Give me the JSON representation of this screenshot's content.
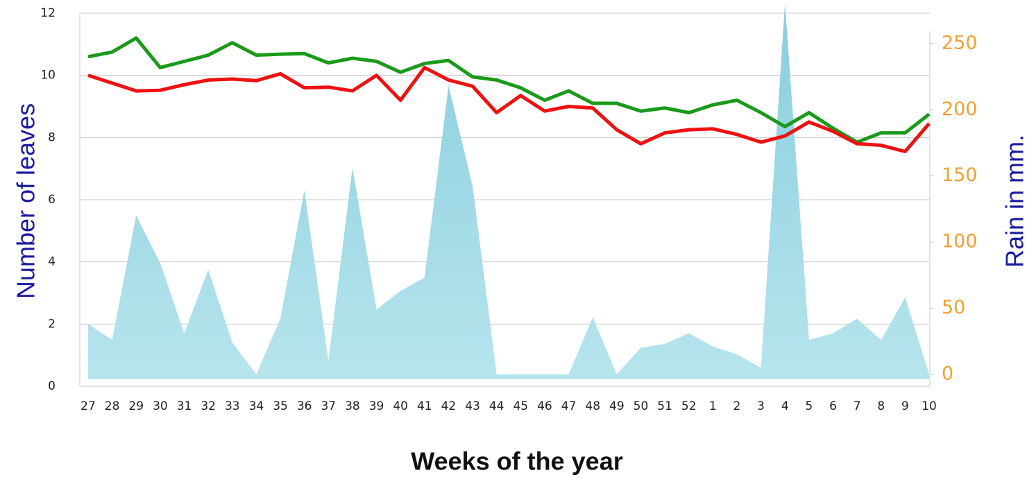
{
  "chart_data": {
    "type": "line",
    "x_label": "Weeks of the year",
    "y_label": "Number of leaves",
    "y2_label": "Rain in mm.",
    "categories": [
      "27",
      "28",
      "29",
      "30",
      "31",
      "32",
      "33",
      "34",
      "35",
      "36",
      "37",
      "38",
      "39",
      "40",
      "41",
      "42",
      "43",
      "44",
      "45",
      "46",
      "47",
      "48",
      "49",
      "50",
      "51",
      "52",
      "1",
      "2",
      "3",
      "4",
      "5",
      "6",
      "7",
      "8",
      "9",
      "10"
    ],
    "ylim": [
      0,
      12
    ],
    "yticks": [
      0,
      2,
      4,
      6,
      8,
      10,
      12
    ],
    "y2lim": [
      -9,
      273
    ],
    "y2ticks": [
      0,
      50,
      100,
      150,
      200,
      250
    ],
    "grid": true,
    "series": [
      {
        "type": "area",
        "axis": "y2",
        "color": "#a6dbe6",
        "values": [
          38,
          26,
          120,
          84,
          31,
          79,
          24,
          0,
          42,
          139,
          10,
          156,
          49,
          63,
          73,
          218,
          142,
          0,
          0,
          0,
          0,
          43,
          0,
          20,
          23,
          31,
          21,
          15,
          5,
          280,
          26,
          31,
          42,
          26,
          58,
          0
        ]
      },
      {
        "type": "line",
        "color": "#1a9a1a",
        "values": [
          10.6,
          10.75,
          11.2,
          10.25,
          10.45,
          10.65,
          11.05,
          10.65,
          10.68,
          10.7,
          10.4,
          10.55,
          10.45,
          10.1,
          10.38,
          10.48,
          9.95,
          9.85,
          9.6,
          9.2,
          9.5,
          9.1,
          9.1,
          8.85,
          8.95,
          8.8,
          9.05,
          9.2,
          8.8,
          8.35,
          8.8,
          8.3,
          7.85,
          8.15,
          8.15,
          8.75
        ]
      },
      {
        "type": "line",
        "color": "#ee1111",
        "values": [
          10.0,
          9.75,
          9.5,
          9.52,
          9.7,
          9.85,
          9.88,
          9.83,
          10.05,
          9.6,
          9.62,
          9.5,
          10.0,
          9.2,
          10.25,
          9.85,
          9.65,
          8.8,
          9.35,
          8.85,
          9.0,
          8.95,
          8.25,
          7.8,
          8.15,
          8.25,
          8.28,
          8.1,
          7.85,
          8.05,
          8.5,
          8.2,
          7.8,
          7.75,
          7.55,
          8.45
        ]
      }
    ]
  }
}
